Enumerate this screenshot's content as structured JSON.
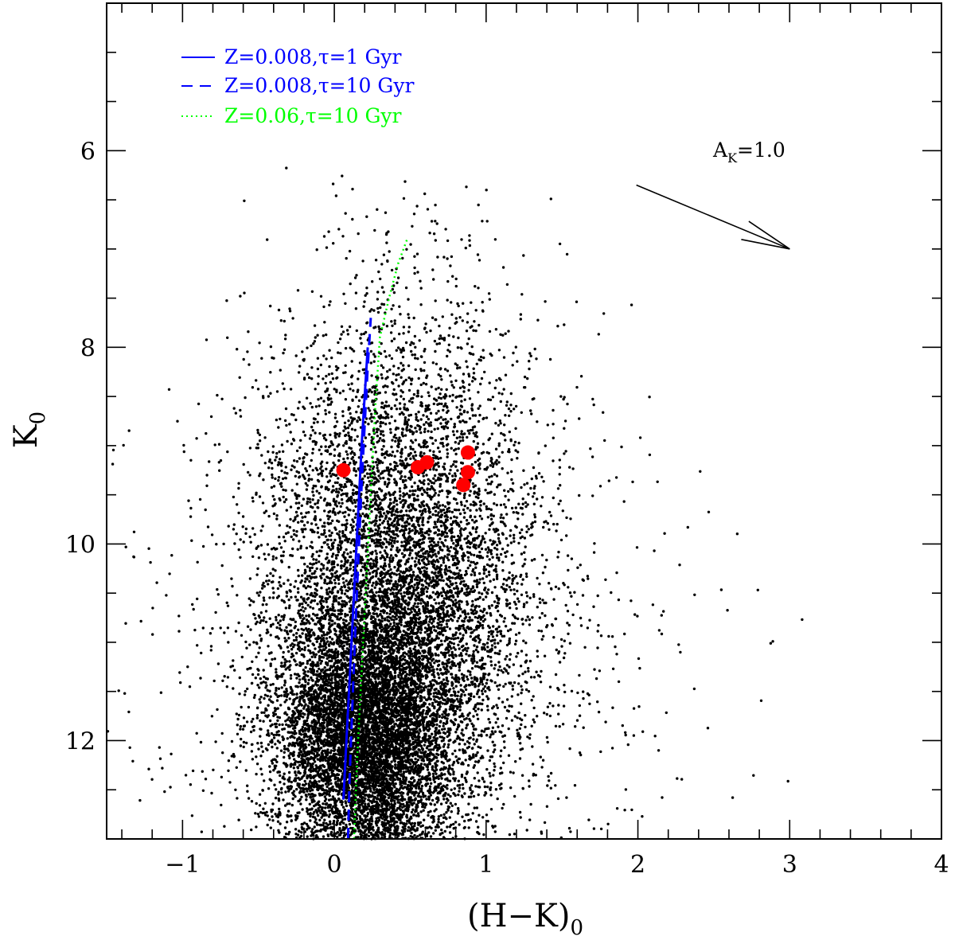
{
  "chart_data": {
    "type": "scatter",
    "title": "",
    "xlabel_main": "(H−K)",
    "xlabel_sub": "0",
    "ylabel_main": "K",
    "ylabel_sub": "0",
    "xlim": [
      -1.5,
      4
    ],
    "ylim": [
      13,
      4.5
    ],
    "y_inverted": true,
    "grid": false,
    "x_major_ticks": [
      -1,
      0,
      1,
      2,
      3,
      4
    ],
    "x_tick_labels": [
      "−1",
      "0",
      "1",
      "2",
      "3",
      "4"
    ],
    "y_major_ticks": [
      6,
      8,
      10,
      12
    ],
    "y_tick_labels": [
      "6",
      "8",
      "10",
      "12"
    ],
    "x_minor_step": 0.2,
    "y_minor_step": 0.5,
    "background_stars": {
      "description_count_approx": 20000,
      "color": "#000000",
      "clusters": [
        {
          "center_x": 0.2,
          "center_y": 12.0,
          "sd_x": 0.28,
          "sd_y": 0.65,
          "n": 6500
        },
        {
          "center_x": 0.45,
          "center_y": 10.8,
          "sd_x": 0.42,
          "sd_y": 1.2,
          "n": 5500
        },
        {
          "center_x": 0.4,
          "center_y": 9.5,
          "sd_x": 0.5,
          "sd_y": 1.3,
          "n": 2200
        },
        {
          "center_x": 0.5,
          "center_y": 11.2,
          "sd_x": 0.9,
          "sd_y": 1.3,
          "n": 900
        }
      ]
    },
    "highlighted_stars": {
      "color": "#ff0000",
      "points": [
        {
          "x": 0.06,
          "y": 9.25
        },
        {
          "x": 0.55,
          "y": 9.22
        },
        {
          "x": 0.61,
          "y": 9.17
        },
        {
          "x": 0.88,
          "y": 9.07
        },
        {
          "x": 0.88,
          "y": 9.27
        },
        {
          "x": 0.85,
          "y": 9.4
        }
      ]
    },
    "series": [
      {
        "name": "Z=0.008,τ=1 Gyr",
        "style": "solid",
        "color": "#0000ff",
        "x": [
          0.06,
          0.08,
          0.1,
          0.12,
          0.14,
          0.16,
          0.18,
          0.2,
          0.22
        ],
        "y": [
          12.6,
          12.0,
          11.4,
          10.8,
          10.2,
          9.6,
          9.0,
          8.5,
          8.0
        ]
      },
      {
        "name": "Z=0.008,τ=10 Gyr",
        "style": "dashed",
        "color": "#0000ff",
        "x": [
          0.09,
          0.1,
          0.12,
          0.14,
          0.16,
          0.18,
          0.2,
          0.22,
          0.24
        ],
        "y": [
          13.0,
          12.4,
          11.6,
          10.8,
          10.1,
          9.4,
          8.8,
          8.2,
          7.7
        ]
      },
      {
        "name": "Z=0.06,τ=10 Gyr",
        "style": "dotted",
        "color": "#00ff00",
        "x": [
          0.13,
          0.15,
          0.18,
          0.21,
          0.24,
          0.27,
          0.3,
          0.36,
          0.42,
          0.48
        ],
        "y": [
          13.0,
          12.2,
          11.3,
          10.4,
          9.5,
          8.6,
          7.9,
          7.5,
          7.15,
          6.9
        ]
      }
    ],
    "legend": {
      "placement": "top-left",
      "entries": [
        {
          "label": "Z=0.008,τ=1 Gyr",
          "style": "solid",
          "color": "#0000ff"
        },
        {
          "label": "Z=0.008,τ=10 Gyr",
          "style": "dashed",
          "color": "#0000ff"
        },
        {
          "label": "Z=0.06,τ=10 Gyr",
          "style": "dotted",
          "color": "#00ff00"
        }
      ]
    },
    "reddening_vector": {
      "label_main": "A",
      "label_sub": "K",
      "label_value": "=1.0",
      "from": {
        "x": 1.99,
        "y": 6.35
      },
      "to": {
        "x": 3.0,
        "y": 7.0
      }
    }
  }
}
